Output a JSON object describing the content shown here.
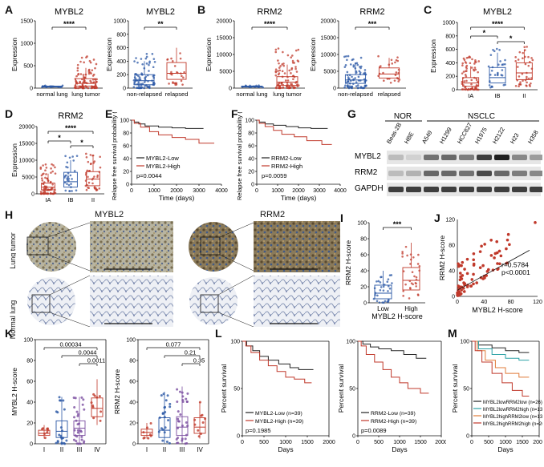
{
  "panels": {
    "A": "A",
    "B": "B",
    "C": "C",
    "D": "D",
    "E": "E",
    "F": "F",
    "G": "G",
    "H": "H",
    "I": "I",
    "J": "J",
    "K": "K",
    "L": "L",
    "M": "M"
  },
  "colors": {
    "blue": "#2a57a5",
    "red": "#c0392b",
    "dark": "#222222",
    "teal": "#2aa1a5",
    "orange": "#e07b39"
  },
  "chart_data": [
    {
      "id": "A1",
      "type": "scatter",
      "title": "MYBL2",
      "ylabel": "Expression",
      "categories": [
        "normal lung",
        "lung tumor"
      ],
      "ylim": [
        0,
        1500
      ],
      "yticks": [
        "0",
        "500",
        "1000",
        "1500"
      ],
      "significance": "****"
    },
    {
      "id": "A2",
      "type": "scatter",
      "title": "MYBL2",
      "ylabel": "Expression",
      "categories": [
        "non-relapsed",
        "relapsed"
      ],
      "ylim": [
        0,
        1000
      ],
      "yticks": [
        "0",
        "200",
        "400",
        "600",
        "800",
        "1000"
      ],
      "significance": "**"
    },
    {
      "id": "B1",
      "type": "scatter",
      "title": "RRM2",
      "ylabel": "Expression",
      "categories": [
        "normal lung",
        "lung tumor"
      ],
      "ylim": [
        0,
        20000
      ],
      "yticks": [
        "0",
        "5000",
        "10000",
        "15000",
        "20000"
      ],
      "significance": "****"
    },
    {
      "id": "B2",
      "type": "scatter",
      "title": "RRM2",
      "ylabel": "Expression",
      "categories": [
        "non-relapsed",
        "relapsed"
      ],
      "ylim": [
        0,
        20000
      ],
      "yticks": [
        "0",
        "5000",
        "10000",
        "15000",
        "20000"
      ],
      "significance": "***"
    },
    {
      "id": "C",
      "type": "scatter",
      "title": "MYBL2",
      "ylabel": "Expression",
      "categories": [
        "IA",
        "IB",
        "II"
      ],
      "ylim": [
        0,
        1000
      ],
      "yticks": [
        "0",
        "200",
        "400",
        "600",
        "800",
        "1000"
      ],
      "significance": [
        "*",
        "****",
        "*"
      ]
    },
    {
      "id": "D",
      "type": "scatter",
      "title": "RRM2",
      "ylabel": "Expression",
      "categories": [
        "IA",
        "IB",
        "II"
      ],
      "ylim": [
        0,
        20000
      ],
      "yticks": [
        "0",
        "5000",
        "10000",
        "15000",
        "20000"
      ],
      "significance": [
        "*",
        "****",
        "*"
      ]
    },
    {
      "id": "E",
      "type": "line",
      "ylabel": "Relapse free survival probability (%)",
      "xlabel": "Time (days)",
      "xlim": [
        0,
        4000
      ],
      "ylim": [
        0,
        100
      ],
      "xticks": [
        "0",
        "1000",
        "2000",
        "3000",
        "4000"
      ],
      "yticks": [
        "0",
        "20",
        "40",
        "60",
        "80",
        "100"
      ],
      "series": [
        {
          "name": "MYBL2-Low"
        },
        {
          "name": "MYBL2-High"
        }
      ],
      "pvalue": "p=0.0044"
    },
    {
      "id": "F",
      "type": "line",
      "ylabel": "Relapse free survival probability (%)",
      "xlabel": "Time (days)",
      "xlim": [
        0,
        4000
      ],
      "ylim": [
        0,
        100
      ],
      "xticks": [
        "0",
        "1000",
        "2000",
        "3000",
        "4000"
      ],
      "yticks": [
        "0",
        "20",
        "40",
        "60",
        "80",
        "100"
      ],
      "series": [
        {
          "name": "RRM2-Low"
        },
        {
          "name": "RRM2-High"
        }
      ],
      "pvalue": "p=0.0059"
    },
    {
      "id": "I",
      "type": "scatter",
      "ylabel": "RRM2 H-score",
      "xlabel": "MYBL2 H-score",
      "categories": [
        "Low",
        "High"
      ],
      "ylim": [
        0,
        100
      ],
      "yticks": [
        "0",
        "20",
        "40",
        "60",
        "80",
        "100"
      ],
      "significance": "***"
    },
    {
      "id": "J",
      "type": "scatter",
      "ylabel": "RRM2 H-score",
      "xlabel": "MYBL2 H-score",
      "xlim": [
        0,
        120
      ],
      "ylim": [
        0,
        120
      ],
      "xticks": [
        "0",
        "40",
        "80",
        "120"
      ],
      "yticks": [
        "0",
        "40",
        "80",
        "120"
      ],
      "r": "r=0.5784",
      "p": "p<0.0001"
    },
    {
      "id": "K1",
      "type": "scatter",
      "ylabel": "MYBL2 H-score",
      "categories": [
        "I",
        "II",
        "III",
        "IV"
      ],
      "ylim": [
        0,
        100
      ],
      "yticks": [
        "0",
        "20",
        "40",
        "60",
        "80",
        "100"
      ],
      "pvalues": [
        "0.00034",
        "0.0044",
        "0.0011"
      ]
    },
    {
      "id": "K2",
      "type": "scatter",
      "ylabel": "RRM2 H-score",
      "categories": [
        "I",
        "II",
        "III",
        "IV"
      ],
      "ylim": [
        0,
        100
      ],
      "yticks": [
        "0",
        "20",
        "40",
        "60",
        "80",
        "100"
      ],
      "pvalues": [
        "0.077",
        "0.21",
        "0.35"
      ]
    },
    {
      "id": "L1",
      "type": "line",
      "ylabel": "Percent survival",
      "xlabel": "Days",
      "xlim": [
        0,
        2000
      ],
      "ylim": [
        0,
        100
      ],
      "xticks": [
        "0",
        "500",
        "1000",
        "1500",
        "2000"
      ],
      "yticks": [
        "0",
        "50",
        "100"
      ],
      "series": [
        {
          "name": "MYBL2-Low (n=39)"
        },
        {
          "name": "MYBL2-High (n=39)"
        }
      ],
      "pvalue": "p=0.1985"
    },
    {
      "id": "L2",
      "type": "line",
      "ylabel": "Percent survival",
      "xlabel": "Days",
      "xlim": [
        0,
        2000
      ],
      "ylim": [
        0,
        100
      ],
      "xticks": [
        "0",
        "500",
        "1000",
        "1500",
        "2000"
      ],
      "yticks": [
        "0",
        "50",
        "100"
      ],
      "series": [
        {
          "name": "RRM2-Low (n=39)"
        },
        {
          "name": "RRM2-High (n=39)"
        }
      ],
      "pvalue": "p=0.0089"
    },
    {
      "id": "M",
      "type": "line",
      "ylabel": "Percent survival",
      "xlabel": "Days",
      "xlim": [
        0,
        2000
      ],
      "ylim": [
        0,
        100
      ],
      "xticks": [
        "0",
        "500",
        "1000",
        "1500",
        "2000"
      ],
      "yticks": [
        "0",
        "50",
        "100"
      ],
      "series": [
        {
          "name": "MYBL2lowRRM2low (n=26)"
        },
        {
          "name": "MYBL2lowRRM2high (n=13)"
        },
        {
          "name": "MYBL2highRRM2low (n=13)"
        },
        {
          "name": "MYBL2highRRM2high (n=26)"
        }
      ]
    }
  ],
  "western": {
    "group_nor": "NOR",
    "group_nsclc": "NSCLC",
    "cells": [
      "Beas-2B",
      "HBE",
      "A549",
      "H1299",
      "HCC827",
      "H1975",
      "H2122",
      "H23",
      "H358"
    ],
    "rows": [
      "MYBL2",
      "RRM2",
      "GAPDH"
    ]
  },
  "ihc": {
    "title_left": "MYBL2",
    "title_right": "RRM2",
    "row_tumor": "Lung tumor",
    "row_normal": "Normal lung"
  }
}
